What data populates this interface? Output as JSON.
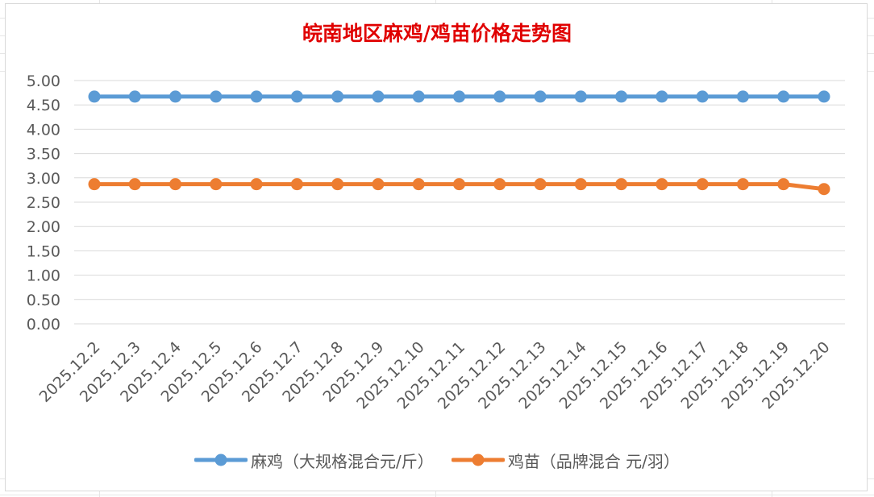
{
  "chart_data": {
    "type": "line",
    "title": "皖南地区麻鸡/鸡苗价格走势图",
    "title_color": "#e00000",
    "categories": [
      "2025.12.2",
      "2025.12.3",
      "2025.12.4",
      "2025.12.5",
      "2025.12.6",
      "2025.12.7",
      "2025.12.8",
      "2025.12.9",
      "2025.12.10",
      "2025.12.11",
      "2025.12.12",
      "2025.12.13",
      "2025.12.14",
      "2025.12.15",
      "2025.12.16",
      "2025.12.17",
      "2025.12.18",
      "2025.12.19",
      "2025.12.20"
    ],
    "series": [
      {
        "name": "麻鸡（大规格混合元/斤）",
        "color": "#5b9bd5",
        "values": [
          4.67,
          4.67,
          4.67,
          4.67,
          4.67,
          4.67,
          4.67,
          4.67,
          4.67,
          4.67,
          4.67,
          4.67,
          4.67,
          4.67,
          4.67,
          4.67,
          4.67,
          4.67,
          4.67
        ]
      },
      {
        "name": "鸡苗（品牌混合 元/羽）",
        "color": "#ed7d31",
        "values": [
          2.87,
          2.87,
          2.87,
          2.87,
          2.87,
          2.87,
          2.87,
          2.87,
          2.87,
          2.87,
          2.87,
          2.87,
          2.87,
          2.87,
          2.87,
          2.87,
          2.87,
          2.87,
          2.77
        ]
      }
    ],
    "ylim": [
      0,
      5
    ],
    "y_ticks": [
      "0.00",
      "0.50",
      "1.00",
      "1.50",
      "2.00",
      "2.50",
      "3.00",
      "3.50",
      "4.00",
      "4.50",
      "5.00"
    ],
    "grid": true,
    "legend_position": "bottom"
  }
}
